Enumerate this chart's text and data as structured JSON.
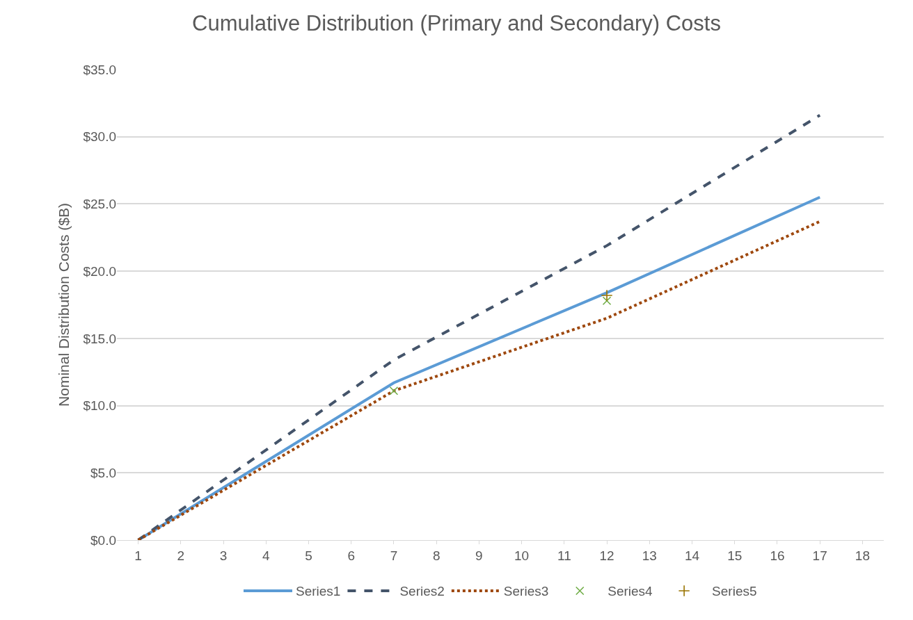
{
  "chart_data": {
    "type": "line",
    "title": "Cumulative Distribution (Primary and Secondary) Costs",
    "ylabel": "Nominal Distribution Costs ($B)",
    "xlim": [
      0.5,
      18.5
    ],
    "xticks": [
      1,
      2,
      3,
      4,
      5,
      6,
      7,
      8,
      9,
      10,
      11,
      12,
      13,
      14,
      15,
      16,
      17,
      18
    ],
    "ylim": [
      0,
      35
    ],
    "yticks": [
      {
        "value": 0,
        "label": "$0.0"
      },
      {
        "value": 5,
        "label": "$5.0"
      },
      {
        "value": 10,
        "label": "$10.0"
      },
      {
        "value": 15,
        "label": "$15.0"
      },
      {
        "value": 20,
        "label": "$20.0"
      },
      {
        "value": 25,
        "label": "$25.0"
      },
      {
        "value": 30,
        "label": "$30.0"
      },
      {
        "value": 35,
        "label": "$35.0"
      }
    ],
    "grid": "y",
    "legend": "bottom",
    "series": [
      {
        "name": "Series1",
        "color": "#5b9bd5",
        "line_style": "solid",
        "marker": "none",
        "x": [
          1,
          7,
          12,
          17
        ],
        "values": [
          0,
          11.7,
          18.4,
          25.5
        ]
      },
      {
        "name": "Series2",
        "color": "#44546a",
        "line_style": "dashed",
        "marker": "none",
        "x": [
          1,
          7,
          12,
          17
        ],
        "values": [
          0,
          13.4,
          21.9,
          31.6
        ]
      },
      {
        "name": "Series3",
        "color": "#9e480e",
        "line_style": "dotted",
        "marker": "none",
        "x": [
          1,
          7,
          12,
          17
        ],
        "values": [
          0,
          11.1,
          16.5,
          23.7
        ]
      },
      {
        "name": "Series4",
        "type": "scatter",
        "color": "#70ad47",
        "marker": "cross",
        "x": [
          7,
          12
        ],
        "values": [
          11.1,
          17.8
        ]
      },
      {
        "name": "Series5",
        "type": "scatter",
        "color": "#997300",
        "marker": "plus",
        "x": [
          12
        ],
        "values": [
          18.2
        ]
      }
    ]
  }
}
